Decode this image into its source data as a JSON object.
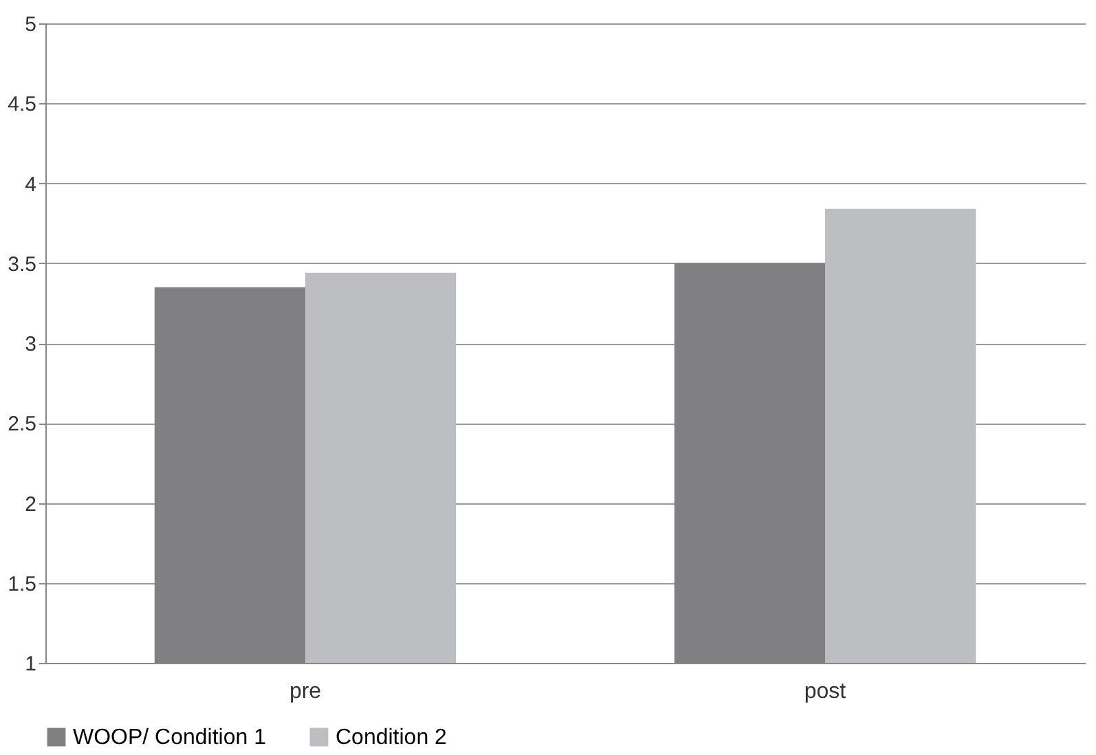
{
  "chart_data": {
    "type": "bar",
    "categories": [
      "pre",
      "post"
    ],
    "series": [
      {
        "name": "WOOP/ Condition 1",
        "color": "#808083",
        "values": [
          3.35,
          3.5
        ]
      },
      {
        "name": "Condition 2",
        "color": "#bdbec2",
        "values": [
          3.44,
          3.84
        ]
      }
    ],
    "ylim": [
      1,
      5
    ],
    "yticks": [
      1,
      1.5,
      2,
      2.5,
      3,
      3.5,
      4,
      4.5,
      5
    ],
    "grid": "y",
    "legend": "bottom"
  }
}
